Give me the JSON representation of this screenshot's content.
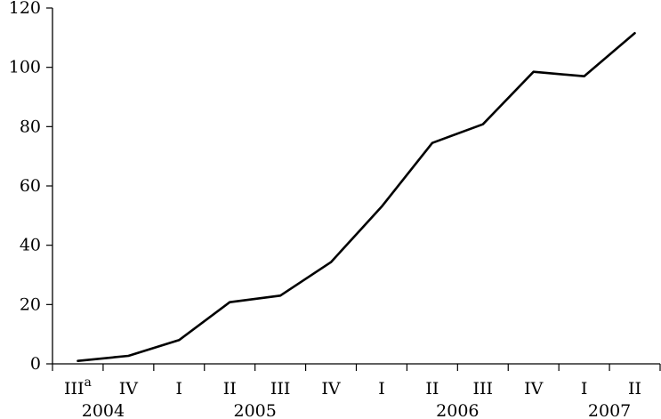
{
  "chart_data": {
    "type": "line",
    "categories": [
      "III",
      "IV",
      "I",
      "II",
      "III",
      "IV",
      "I",
      "II",
      "III",
      "IV",
      "I",
      "II"
    ],
    "first_category_marker": "a",
    "years": [
      {
        "label": "2004",
        "from_index": 0,
        "to_index": 1
      },
      {
        "label": "2005",
        "from_index": 2,
        "to_index": 5
      },
      {
        "label": "2006",
        "from_index": 6,
        "to_index": 9
      },
      {
        "label": "2007",
        "from_index": 10,
        "to_index": 11
      }
    ],
    "series": [
      {
        "values": [
          1,
          2.7,
          8,
          20.8,
          23,
          34.3,
          53,
          74.5,
          80.8,
          98.5,
          97,
          111.5
        ]
      }
    ],
    "ylim": [
      0,
      120
    ],
    "yticks": [
      0,
      20,
      40,
      60,
      80,
      100,
      120
    ],
    "title": "",
    "xlabel": "",
    "ylabel": "",
    "grid": false,
    "line_color": "#000000"
  }
}
